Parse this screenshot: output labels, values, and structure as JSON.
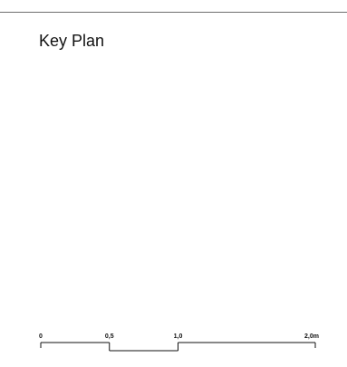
{
  "sheet": {
    "title": "Key Plan"
  },
  "scale_bar": {
    "unit": "m",
    "ticks": [
      {
        "value": 0,
        "label": "0"
      },
      {
        "value": 0.5,
        "label": "0,5"
      },
      {
        "value": 1.0,
        "label": "1,0"
      },
      {
        "value": 2.0,
        "label": "2,0m"
      }
    ],
    "line_color": "#111111"
  },
  "colors": {
    "background": "#ffffff",
    "rule": "#6e6e6e",
    "text": "#111111"
  }
}
